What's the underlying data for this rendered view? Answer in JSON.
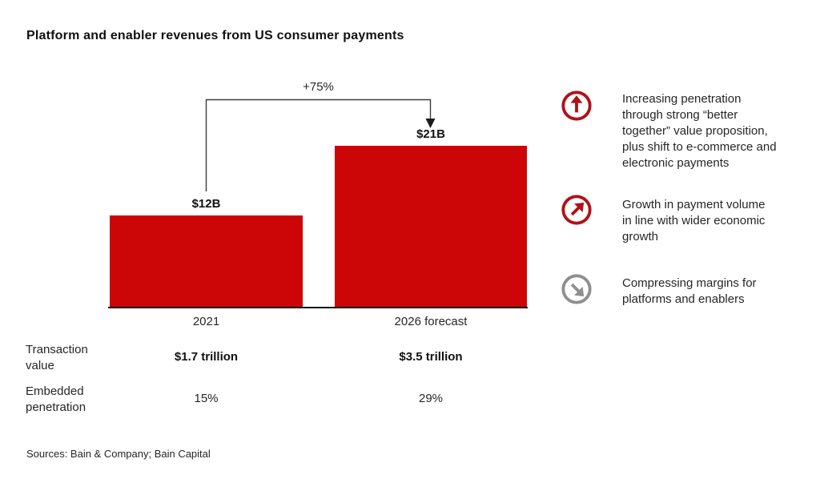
{
  "title": "Platform and enabler revenues from US consumer payments",
  "chart_data": {
    "type": "bar",
    "title": "Platform and enabler revenues from US consumer payments",
    "categories": [
      "2021",
      "2026 forecast"
    ],
    "values": [
      12,
      21
    ],
    "value_labels": [
      "$12B",
      "$21B"
    ],
    "unit": "USD billions",
    "annotation": "+75%",
    "xlabel": "",
    "ylabel": "",
    "ylim": [
      0,
      21
    ],
    "grid": false,
    "legend": "none",
    "bar_color": "#cc0606",
    "table": {
      "rows": [
        {
          "label": "Transaction value",
          "values": [
            "$1.7 trillion",
            "$3.5 trillion"
          ]
        },
        {
          "label": "Embedded penetration",
          "values": [
            "15%",
            "29%"
          ]
        }
      ]
    }
  },
  "insights": [
    {
      "icon": "circle-arrow-up-icon",
      "icon_color": "#b01218",
      "text": "Increasing penetration through strong “better together” value proposition, plus shift to e-commerce and electronic payments"
    },
    {
      "icon": "circle-arrow-up-right-icon",
      "icon_color": "#b01218",
      "text": "Growth in payment volume in line with wider economic growth"
    },
    {
      "icon": "circle-arrow-down-right-icon",
      "icon_color": "#8f8f8f",
      "text": "Compressing margins for platforms and enablers"
    }
  ],
  "sources": "Sources: Bain & Company; Bain Capital",
  "colors": {
    "bar_red": "#cc0606",
    "icon_red": "#b01218",
    "icon_gray": "#8f8f8f",
    "axis_black": "#111111",
    "text": "#262626"
  }
}
